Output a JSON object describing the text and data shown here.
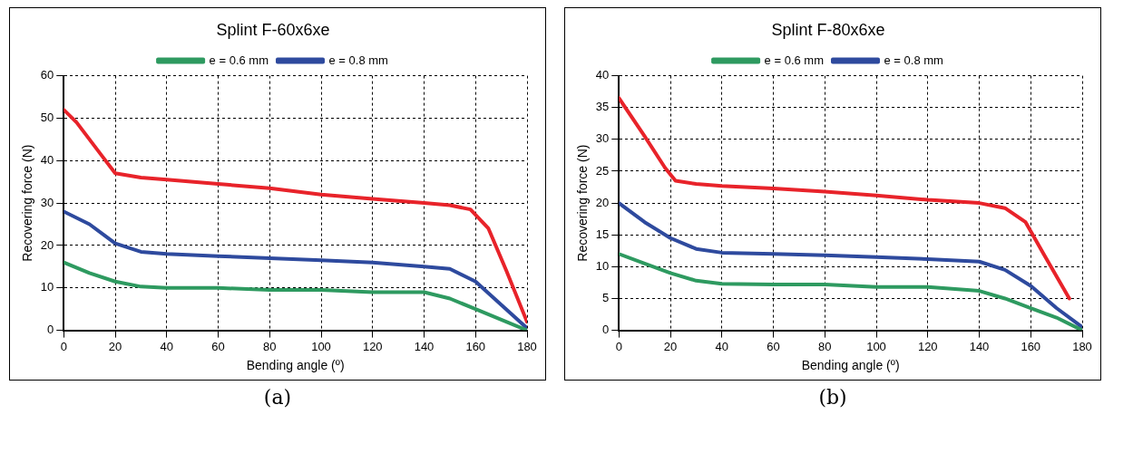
{
  "chart_data": [
    {
      "type": "line",
      "title": "Splint F-60x6xe",
      "xlabel": "Bending angle (º)",
      "ylabel": "Recovering force (N)",
      "annotations": [
        "(a)"
      ],
      "legend": "top",
      "grid": true,
      "line_style": "solid",
      "marker": "none",
      "xlim": [
        0,
        180
      ],
      "xticks": [
        0,
        20,
        40,
        60,
        80,
        100,
        120,
        140,
        160,
        180
      ],
      "ylim": [
        0,
        60
      ],
      "yticks": [
        0,
        10,
        20,
        30,
        40,
        50,
        60
      ],
      "series": [
        {
          "name": "e = 0.6 mm",
          "color": "#2e9a60",
          "x": [
            0,
            10,
            20,
            30,
            40,
            60,
            80,
            100,
            120,
            140,
            150,
            160,
            170,
            180
          ],
          "values": [
            16,
            13.5,
            11.5,
            10.3,
            10,
            10,
            9.5,
            9.5,
            9,
            9,
            7.5,
            5,
            2.5,
            0
          ]
        },
        {
          "name": "e = 0.8 mm",
          "color": "#2e4a9e",
          "x": [
            0,
            10,
            20,
            30,
            40,
            60,
            80,
            100,
            120,
            140,
            150,
            160,
            170,
            180
          ],
          "values": [
            28,
            25,
            20.5,
            18.5,
            18,
            17.5,
            17,
            16.5,
            16,
            15,
            14.5,
            11.5,
            6,
            0.5
          ]
        },
        {
          "color": "#e8232a",
          "x": [
            0,
            5,
            10,
            15,
            20,
            30,
            40,
            60,
            80,
            100,
            120,
            140,
            150,
            158,
            165,
            172,
            180
          ],
          "values": [
            52,
            49,
            45,
            41,
            37,
            36,
            35.5,
            34.5,
            33.5,
            32,
            31,
            30,
            29.5,
            28.5,
            24,
            14,
            2
          ]
        }
      ]
    },
    {
      "type": "line",
      "title": "Splint F-80x6xe",
      "xlabel": "Bending angle (º)",
      "ylabel": "Recovering force (N)",
      "annotations": [
        "(b)"
      ],
      "legend": "top",
      "grid": true,
      "line_style": "solid",
      "marker": "none",
      "xlim": [
        0,
        180
      ],
      "xticks": [
        0,
        20,
        40,
        60,
        80,
        100,
        120,
        140,
        160,
        180
      ],
      "ylim": [
        0,
        40
      ],
      "yticks": [
        0,
        5,
        10,
        15,
        20,
        25,
        30,
        35,
        40
      ],
      "series": [
        {
          "name": "e = 0.6 mm",
          "color": "#2e9a60",
          "x": [
            0,
            10,
            20,
            30,
            40,
            60,
            80,
            100,
            120,
            140,
            150,
            160,
            170,
            180
          ],
          "values": [
            12,
            10.5,
            9,
            7.8,
            7.3,
            7.2,
            7.2,
            6.8,
            6.8,
            6.2,
            5,
            3.5,
            2,
            0
          ]
        },
        {
          "name": "e = 0.8 mm",
          "color": "#2e4a9e",
          "x": [
            0,
            10,
            20,
            30,
            40,
            60,
            80,
            100,
            120,
            140,
            150,
            160,
            170,
            180
          ],
          "values": [
            20,
            17,
            14.5,
            12.8,
            12.2,
            12,
            11.8,
            11.5,
            11.2,
            10.8,
            9.5,
            7,
            3.5,
            0.5
          ]
        },
        {
          "color": "#e8232a",
          "x": [
            0,
            10,
            18,
            22,
            30,
            40,
            60,
            80,
            100,
            120,
            140,
            150,
            158,
            165,
            175
          ],
          "values": [
            36.5,
            30.5,
            25.5,
            23.5,
            23,
            22.7,
            22.3,
            21.8,
            21.2,
            20.5,
            20,
            19.2,
            17,
            12,
            5
          ]
        }
      ]
    }
  ]
}
